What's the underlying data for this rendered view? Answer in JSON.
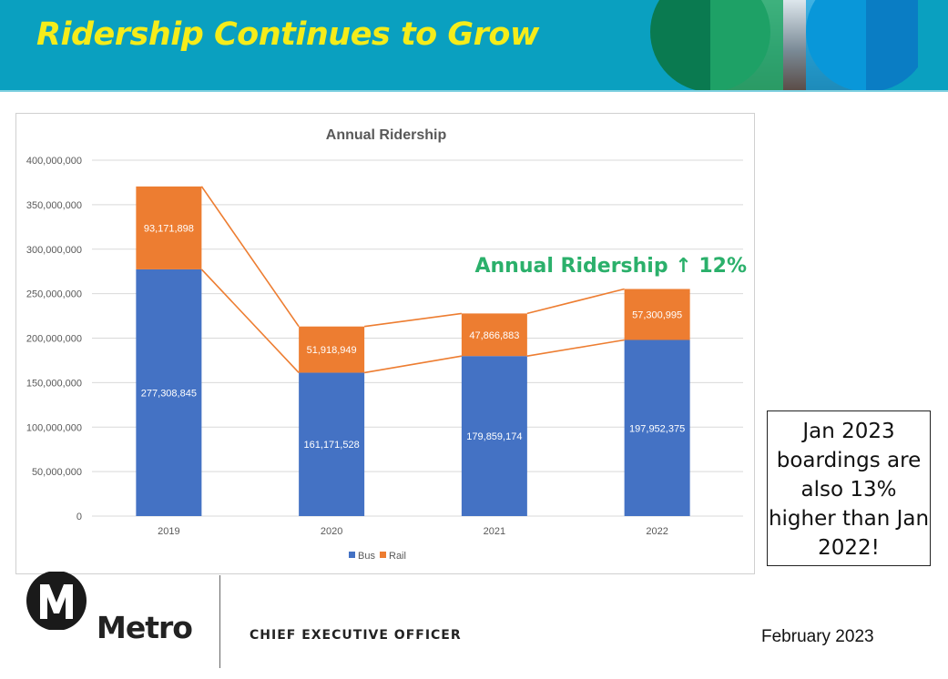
{
  "slide": {
    "title": "Ridership Continues to Grow",
    "callout": "Jan 2023 boardings are also 13% higher than Jan 2022!",
    "logo_text": "Metro",
    "office": "CHIEF EXECUTIVE OFFICER",
    "date": "February 2023",
    "colors": {
      "header": "#0aa0c0",
      "title": "#f5ec1a",
      "annotation": "#2bb06b"
    }
  },
  "chart_data": {
    "type": "bar",
    "stacked": true,
    "title": "Annual Ridership",
    "categories": [
      "2019",
      "2020",
      "2021",
      "2022"
    ],
    "series": [
      {
        "name": "Bus",
        "color": "#4472c4",
        "values": [
          277308845,
          161171528,
          179859174,
          197952375
        ],
        "labels": [
          "277,308,845",
          "161,171,528",
          "179,859,174",
          "197,952,375"
        ]
      },
      {
        "name": "Rail",
        "color": "#ed7d31",
        "values": [
          93171898,
          51918949,
          47866883,
          57300995
        ],
        "labels": [
          "93,171,898",
          "51,918,949",
          "47,866,883",
          "57,300,995"
        ]
      }
    ],
    "ylim": [
      0,
      400000000
    ],
    "yticks": [
      "0",
      "50,000,000",
      "100,000,000",
      "150,000,000",
      "200,000,000",
      "250,000,000",
      "300,000,000",
      "350,000,000",
      "400,000,000"
    ],
    "grid": true,
    "series_lines": true,
    "legend": "bottom",
    "annotation": "Annual Ridership ↑ 12%"
  }
}
